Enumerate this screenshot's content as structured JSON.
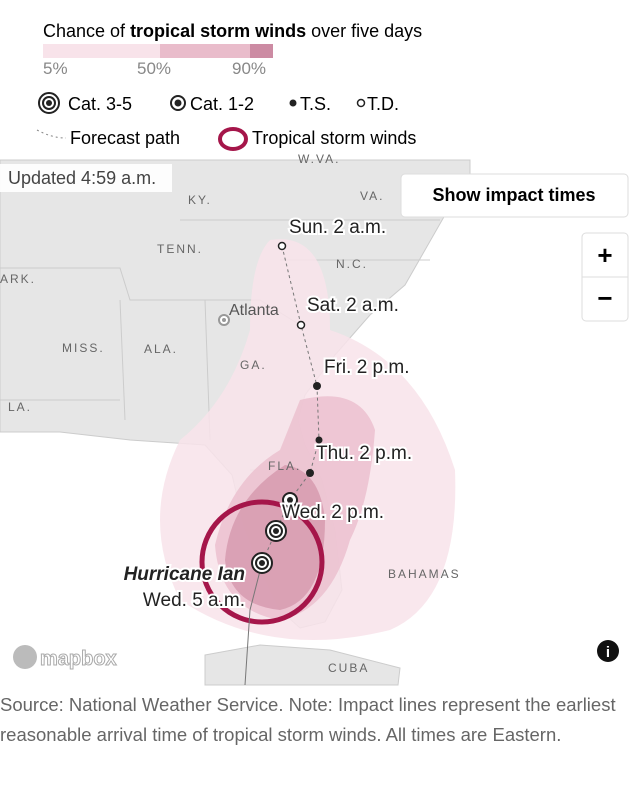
{
  "legend": {
    "title": {
      "before": "Chance of ",
      "bold": "tropical storm winds",
      "after": " over five days"
    },
    "scale": [
      "5%",
      "50%",
      "90%"
    ],
    "symbols": [
      "Cat. 3-5",
      "Cat. 1-2",
      "T.S.",
      "T.D."
    ],
    "path": "Forecast path",
    "winds": "Tropical storm winds"
  },
  "map": {
    "updated": "Updated 4:59 a.m.",
    "button": "Show impact times",
    "zoom_in": "+",
    "zoom_out": "−",
    "places": [
      "W.VA.",
      "KY.",
      "VA.",
      "TENN.",
      "N.C.",
      "ARK.",
      "MISS.",
      "ALA.",
      "GA.",
      "LA.",
      "FLA.",
      "BAHAMAS",
      "CUBA"
    ],
    "city": "Atlanta",
    "forecast": [
      "Sun. 2 a.m.",
      "Sat. 2 a.m.",
      "Fri. 2 p.m.",
      "Thu. 2 p.m.",
      "Wed. 2 p.m."
    ],
    "storm": "Hurricane Ian",
    "storm_time": "Wed. 5 a.m.",
    "logo": "mapbox",
    "info": "i"
  },
  "source": "Source: National Weather Service. Note: Impact lines represent the earliest reasonable arrival time of tropical storm winds. All times are Eastern."
}
